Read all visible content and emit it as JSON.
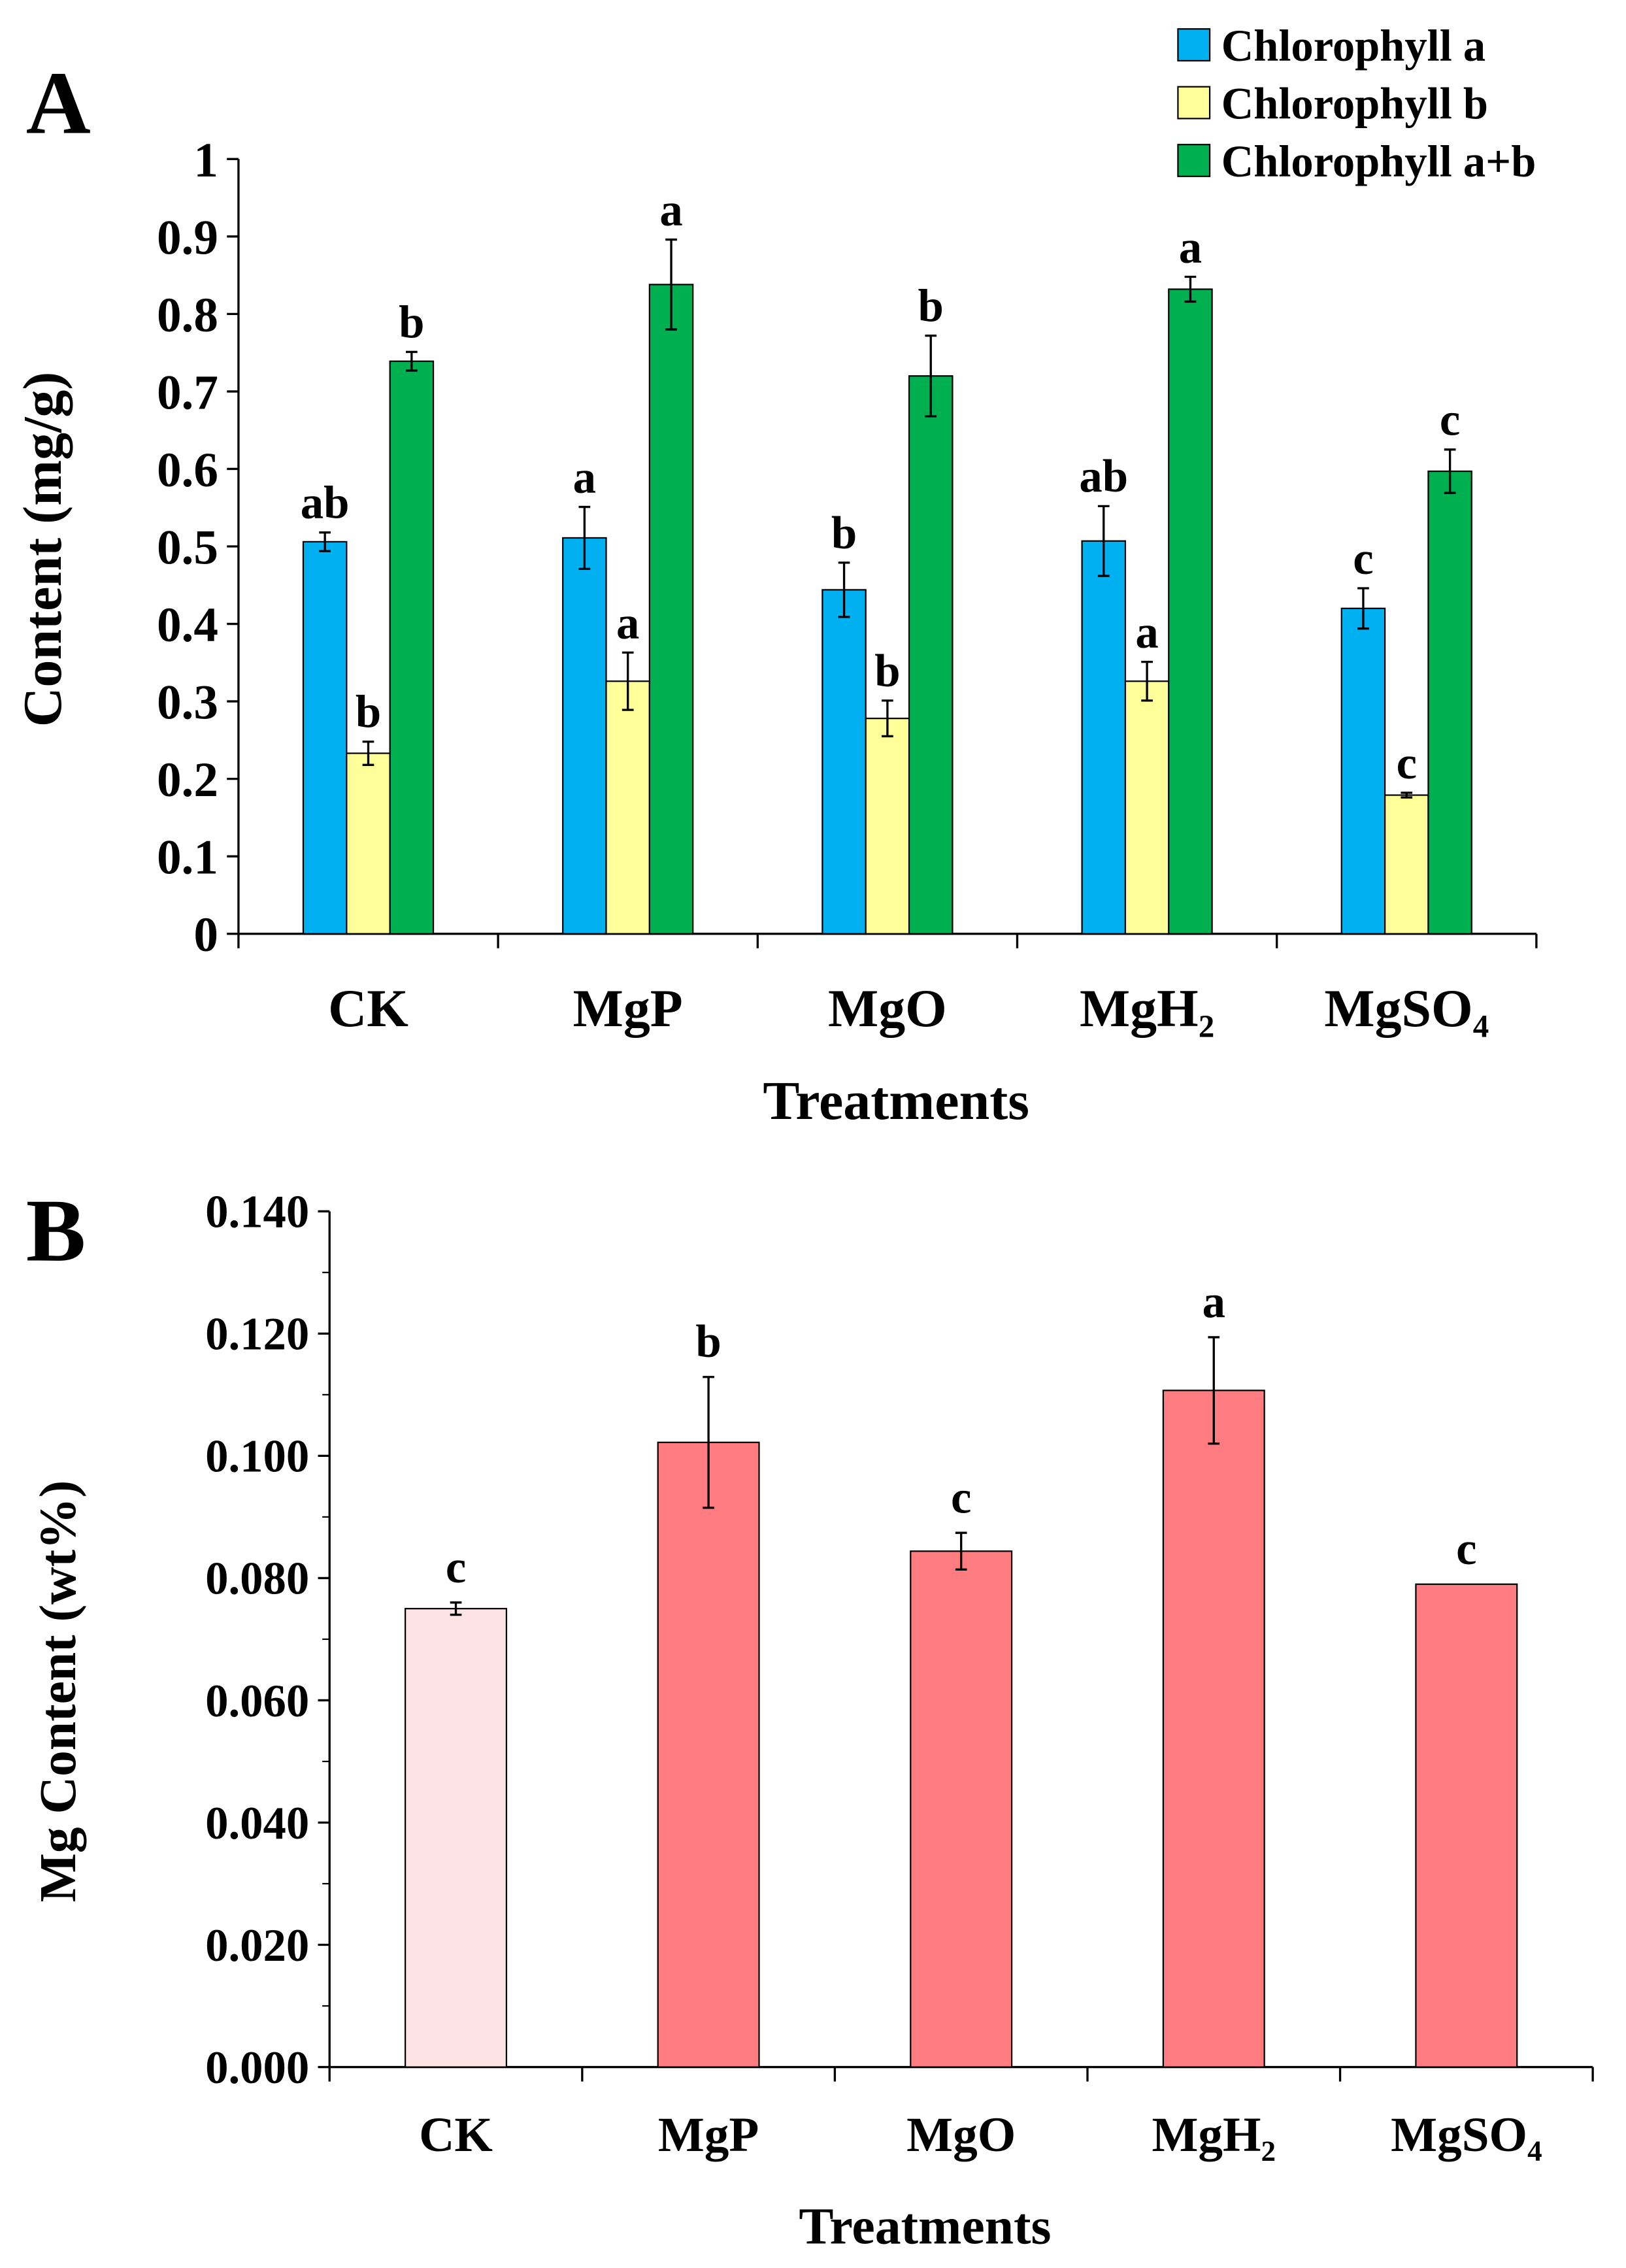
{
  "chart_data": [
    {
      "panel_label": "A",
      "type": "bar",
      "categories": [
        "CK",
        "MgP",
        "MgO",
        "MgH₂",
        "MgSO₄"
      ],
      "xlabel": "Treatments",
      "ylabel": "Content (mg/g)",
      "ylim": [
        0,
        1
      ],
      "yticks": [
        "0",
        "0.1",
        "0.2",
        "0.3",
        "0.4",
        "0.5",
        "0.6",
        "0.7",
        "0.8",
        "0.9",
        "1"
      ],
      "legend_position": "top-right",
      "series": [
        {
          "name": "Chlorophyll a",
          "color": "#00B0F0",
          "values": [
            0.506,
            0.511,
            0.444,
            0.507,
            0.42
          ],
          "errors": [
            0.012,
            0.04,
            0.035,
            0.045,
            0.026
          ],
          "letters": [
            "ab",
            "a",
            "b",
            "ab",
            "c"
          ]
        },
        {
          "name": "Chlorophyll b",
          "color": "#FFFF99",
          "values": [
            0.233,
            0.326,
            0.278,
            0.326,
            0.179
          ],
          "errors": [
            0.015,
            0.037,
            0.023,
            0.025,
            0.003
          ],
          "letters": [
            "b",
            "a",
            "b",
            "a",
            "c"
          ]
        },
        {
          "name": "Chlorophyll a+b",
          "color": "#00B050",
          "values": [
            0.739,
            0.838,
            0.72,
            0.832,
            0.597
          ],
          "errors": [
            0.012,
            0.058,
            0.052,
            0.016,
            0.028
          ],
          "letters": [
            "b",
            "a",
            "b",
            "a",
            "c"
          ]
        }
      ]
    },
    {
      "panel_label": "B",
      "type": "bar",
      "categories": [
        "CK",
        "MgP",
        "MgO",
        "MgH₂",
        "MgSO₄"
      ],
      "xlabel": "Treatments",
      "ylabel": "Mg Content (wt%)",
      "ylim": [
        0,
        0.14
      ],
      "yticks": [
        "0.000",
        "0.020",
        "0.040",
        "0.060",
        "0.080",
        "0.100",
        "0.120",
        "0.140"
      ],
      "series": [
        {
          "colors": [
            "#FDE3E4",
            "#FF7C80",
            "#FF7C80",
            "#FF7C80",
            "#FF7C80"
          ],
          "values": [
            0.075,
            0.1022,
            0.0844,
            0.1107,
            0.079
          ],
          "errors": [
            0.001,
            0.0107,
            0.003,
            0.0087,
            0.0
          ],
          "letters": [
            "c",
            "b",
            "c",
            "a",
            "c"
          ]
        }
      ]
    }
  ]
}
